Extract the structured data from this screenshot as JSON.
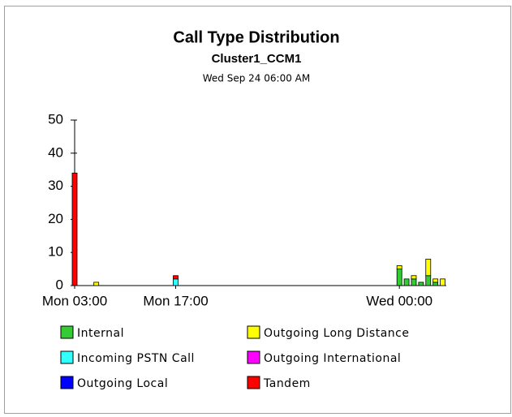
{
  "chart_data": {
    "type": "bar",
    "stacked": true,
    "title": "Call Type Distribution",
    "subtitle": "Cluster1_CCM1",
    "caption": "Wed Sep 24 06:00 AM",
    "x": [
      0,
      3,
      14,
      45,
      46,
      47,
      48,
      49,
      50,
      51
    ],
    "xlim": [
      0,
      51.5
    ],
    "xticks": [
      {
        "value": 0,
        "label": "Mon 03:00"
      },
      {
        "value": 14,
        "label": "Mon 17:00"
      },
      {
        "value": 45,
        "label": "Wed 00:00"
      }
    ],
    "ylim": [
      0,
      50
    ],
    "yticks": [
      0,
      10,
      20,
      30,
      40,
      50
    ],
    "series": [
      {
        "name": "Internal",
        "color": "#33cc33",
        "values": [
          0,
          0,
          0,
          5,
          2,
          2,
          1,
          3,
          1,
          0
        ]
      },
      {
        "name": "Outgoing Long Distance",
        "color": "#ffff00",
        "values": [
          0,
          1,
          0,
          1,
          0,
          1,
          0,
          5,
          1,
          2
        ]
      },
      {
        "name": "Incoming PSTN Call",
        "color": "#33ffff",
        "values": [
          0,
          0,
          2,
          0,
          0,
          0,
          0,
          0,
          0,
          0
        ]
      },
      {
        "name": "Outgoing International",
        "color": "#ff00ff",
        "values": [
          0,
          0,
          0,
          0,
          0,
          0,
          0,
          0,
          0,
          0
        ]
      },
      {
        "name": "Outgoing Local",
        "color": "#0000ff",
        "values": [
          0,
          0,
          0,
          0,
          0,
          0,
          0,
          0,
          0,
          0
        ]
      },
      {
        "name": "Tandem",
        "color": "#ff0000",
        "values": [
          34,
          0,
          1,
          0,
          0,
          0,
          0,
          0,
          0,
          0
        ]
      }
    ]
  }
}
